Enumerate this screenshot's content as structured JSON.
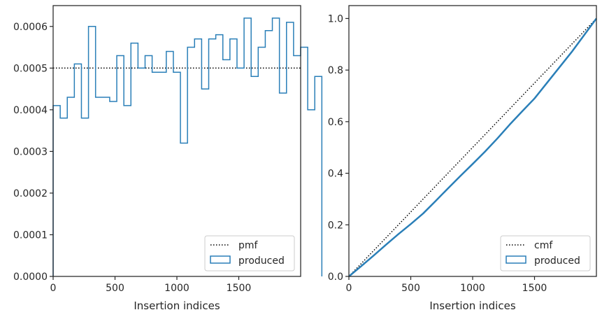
{
  "colors": {
    "series": "#2a7fb8",
    "reference": "#000000",
    "axis": "#262626",
    "legend_border": "#cccccc"
  },
  "chart_data": [
    {
      "type": "histogram",
      "xlabel": "Insertion indices",
      "ylabel": "",
      "xlim": [
        0,
        2000
      ],
      "ylim": [
        0,
        0.00065
      ],
      "xticks": [
        0,
        500,
        1000,
        1500
      ],
      "xtick_labels": [
        "0",
        "500",
        "1000",
        "1500"
      ],
      "yticks": [
        0,
        0.0001,
        0.0002,
        0.0003,
        0.0004,
        0.0005,
        0.0006
      ],
      "ytick_labels": [
        "0.0000",
        "0.0001",
        "0.0002",
        "0.0003",
        "0.0004",
        "0.0005",
        "0.0006"
      ],
      "grid": false,
      "legend_position": "lower-right",
      "legend": [
        "pmf",
        "produced"
      ],
      "reference": {
        "name": "pmf",
        "value": 0.0005,
        "style": "dotted"
      },
      "series": [
        {
          "name": "produced",
          "style": "step",
          "bin_width": 57.14,
          "values": [
            0.00041,
            0.00038,
            0.00043,
            0.00051,
            0.00038,
            0.0006,
            0.00043,
            0.00043,
            0.00042,
            0.00053,
            0.00041,
            0.00056,
            0.0005,
            0.00053,
            0.00049,
            0.00049,
            0.00054,
            0.00049,
            0.00032,
            0.00055,
            0.00057,
            0.00045,
            0.00057,
            0.00058,
            0.00052,
            0.00057,
            0.0005,
            0.00062,
            0.00048,
            0.00055,
            0.00059,
            0.00062,
            0.00044,
            0.00061,
            0.00053,
            0.00055,
            0.0004,
            0.00048
          ]
        }
      ]
    },
    {
      "type": "line",
      "xlabel": "Insertion indices",
      "ylabel": "",
      "xlim": [
        0,
        2000
      ],
      "ylim": [
        0,
        1.05
      ],
      "xticks": [
        0,
        500,
        1000,
        1500
      ],
      "xtick_labels": [
        "0",
        "500",
        "1000",
        "1500"
      ],
      "yticks": [
        0,
        0.2,
        0.4,
        0.6,
        0.8,
        1.0
      ],
      "ytick_labels": [
        "0.0",
        "0.2",
        "0.4",
        "0.6",
        "0.8",
        "1.0"
      ],
      "grid": false,
      "legend_position": "lower-right",
      "legend": [
        "cmf",
        "produced"
      ],
      "reference": {
        "name": "cmf",
        "x": [
          0,
          2000
        ],
        "y": [
          0,
          1.0
        ],
        "style": "dotted"
      },
      "series": [
        {
          "name": "produced",
          "x": [
            0,
            100,
            200,
            300,
            400,
            500,
            600,
            700,
            800,
            900,
            1000,
            1100,
            1200,
            1300,
            1400,
            1500,
            1600,
            1700,
            1800,
            1900,
            2000
          ],
          "y": [
            0,
            0.04,
            0.081,
            0.123,
            0.164,
            0.203,
            0.244,
            0.292,
            0.341,
            0.389,
            0.436,
            0.484,
            0.535,
            0.589,
            0.64,
            0.69,
            0.75,
            0.81,
            0.87,
            0.935,
            1.0
          ]
        }
      ]
    }
  ]
}
